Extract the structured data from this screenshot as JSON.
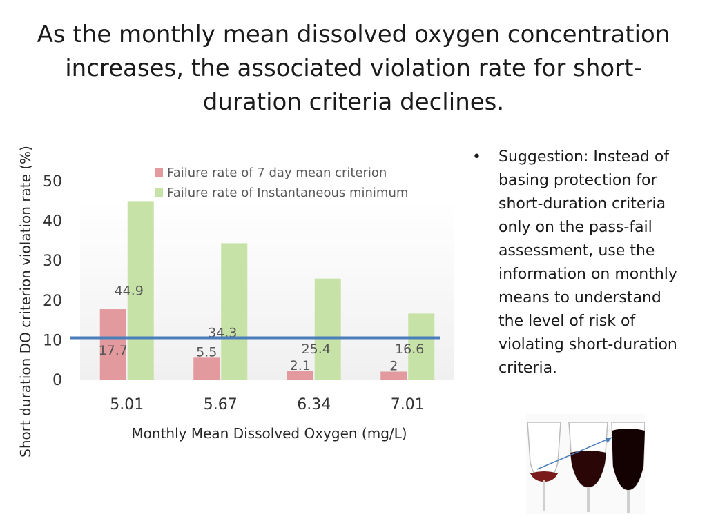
{
  "title": "As the monthly mean dissolved oxygen concentration increases, the associated violation rate for short-duration criteria declines.",
  "bullet": {
    "marker": "•",
    "text": "Suggestion: Instead of basing protection for short-duration criteria only on the pass-fail assessment, use the information on monthly means to understand the level of risk of violating short-duration criteria."
  },
  "colors": {
    "series1": "#e39a9e",
    "series2": "#c6e2a6",
    "threshold_line": "#4a7ebb"
  },
  "chart_data": {
    "type": "bar",
    "xlabel": "Monthly Mean Dissolved Oxygen (mg/L)",
    "ylabel": "Short duration DO criterion violation rate (%)",
    "categories": [
      "5.01",
      "5.67",
      "6.34",
      "7.01"
    ],
    "series": [
      {
        "name": "Failure rate of 7 day mean criterion",
        "values": [
          17.7,
          5.5,
          2.1,
          2
        ]
      },
      {
        "name": "Failure rate of Instantaneous minimum",
        "values": [
          44.9,
          34.3,
          25.4,
          16.6
        ]
      }
    ],
    "yticks": [
      0,
      10,
      20,
      30,
      40,
      50
    ],
    "ylim": [
      0,
      50
    ],
    "reference_line": 10.5,
    "grid": false,
    "legend_position": "top"
  }
}
